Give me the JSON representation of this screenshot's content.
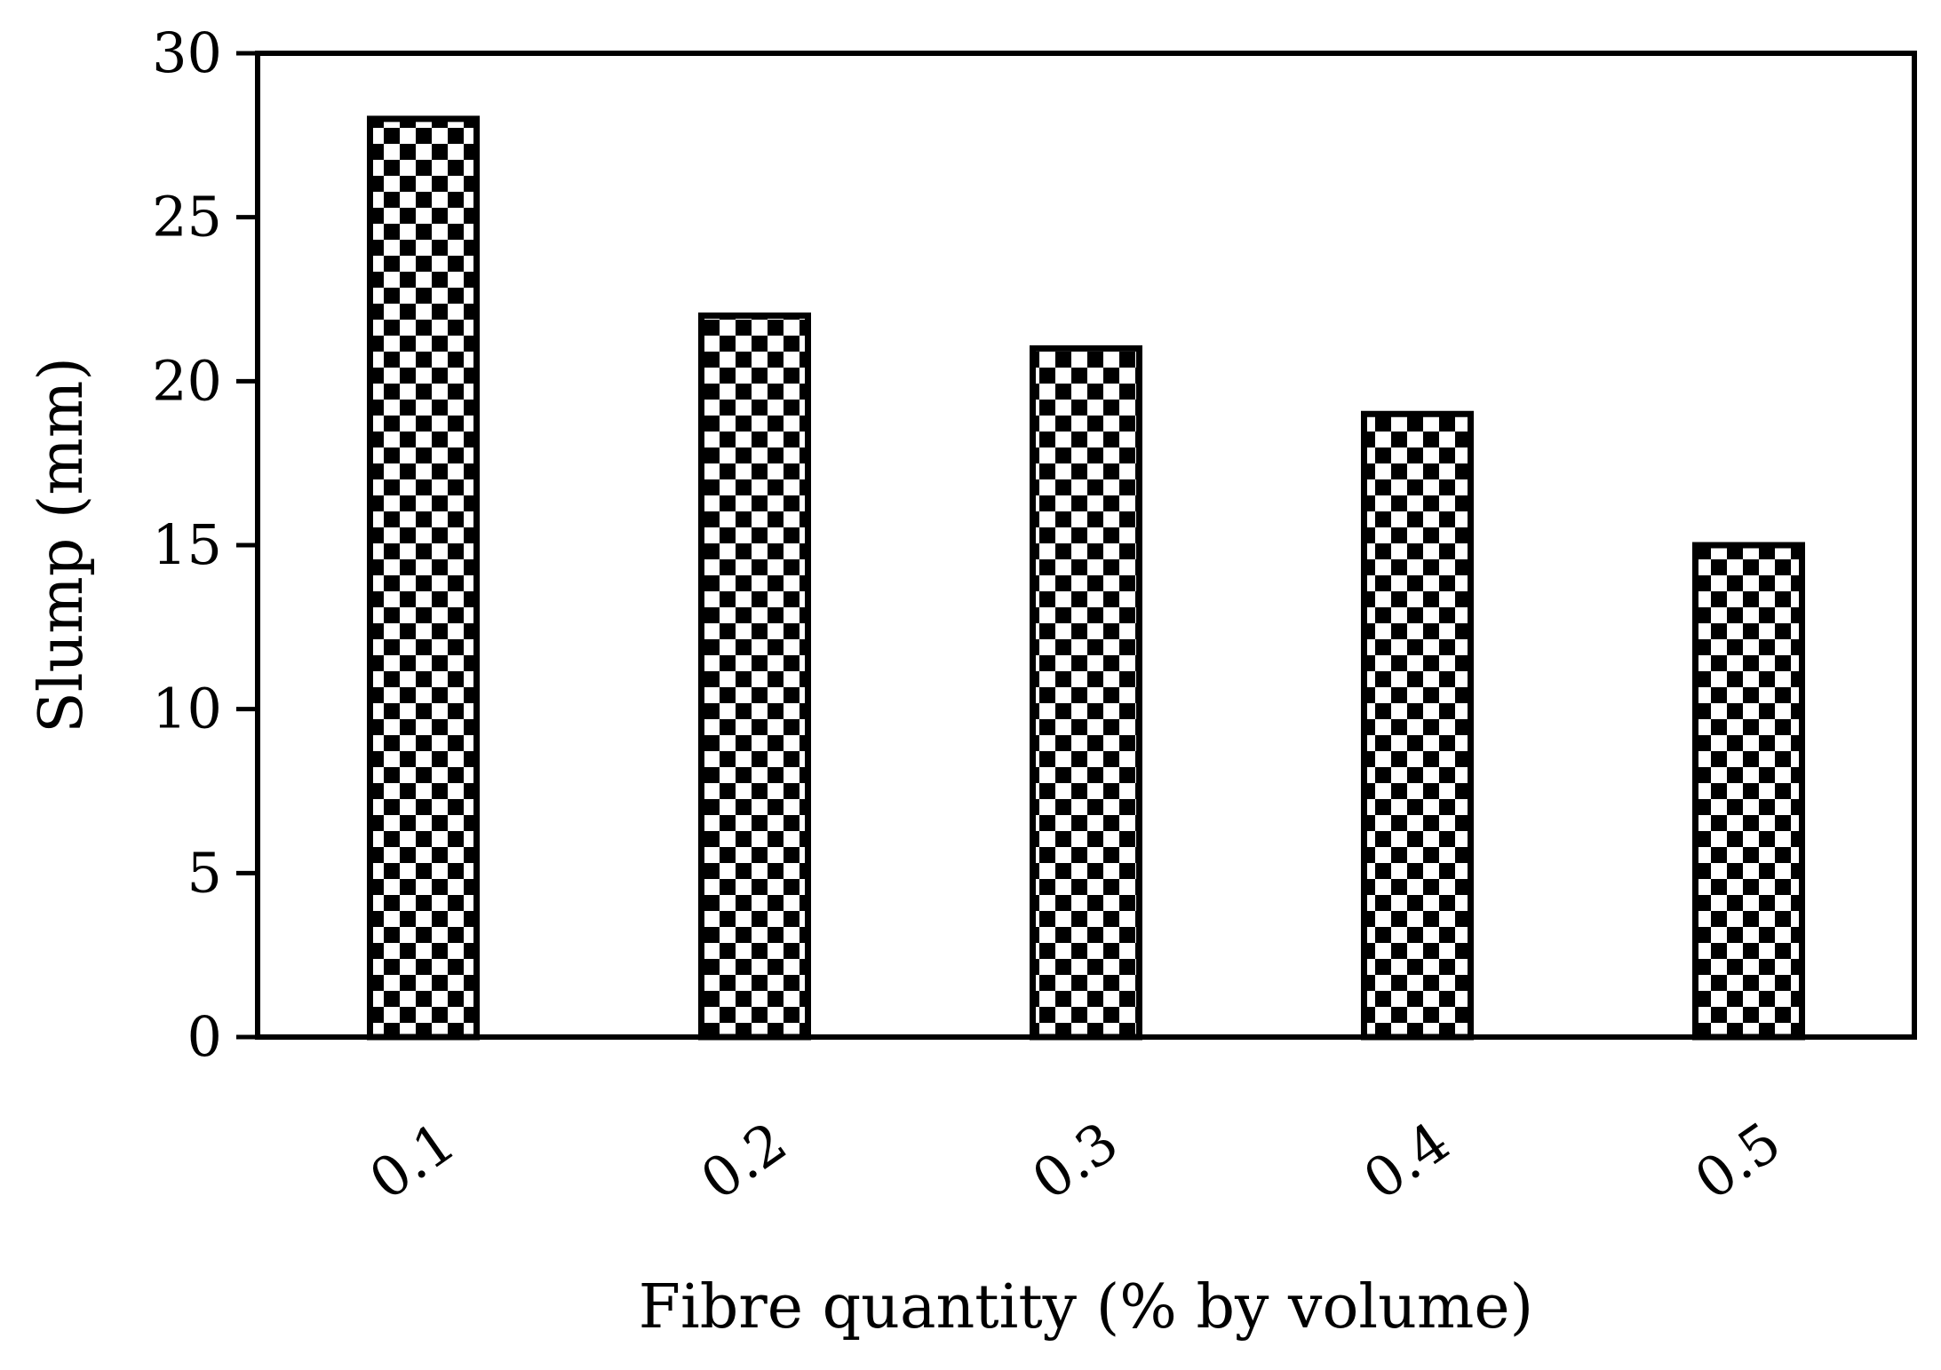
{
  "chart_data": {
    "type": "bar",
    "categories": [
      "0.1",
      "0.2",
      "0.3",
      "0.4",
      "0.5"
    ],
    "values": [
      28,
      22,
      21,
      19,
      15
    ],
    "title": "",
    "xlabel": "Fibre quantity (% by volume)",
    "ylabel": "Slump (mm)",
    "ylim": [
      0,
      30
    ],
    "yticks": [
      "0",
      "5",
      "10",
      "15",
      "20",
      "25",
      "30"
    ],
    "grid": false,
    "legend": "none",
    "bar_fill_pattern": "checkerboard",
    "colors": {
      "bar_pattern_dark": "#000000",
      "bar_pattern_light": "#ffffff",
      "axis": "#000000"
    }
  }
}
